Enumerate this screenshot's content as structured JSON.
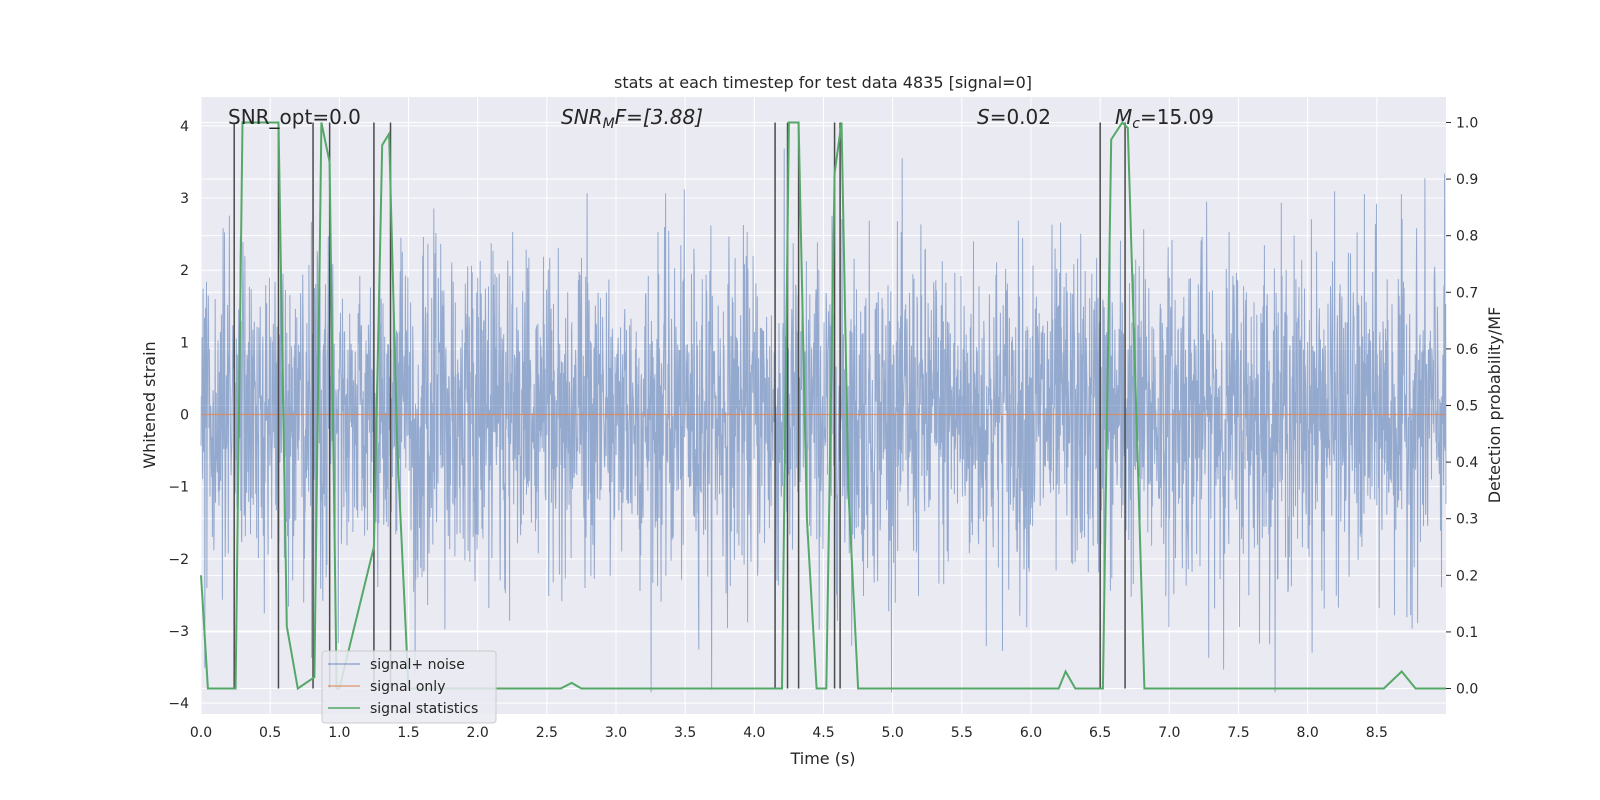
{
  "chart_data": {
    "type": "line",
    "title": "stats at each timestep for test data 4835 [signal=0]",
    "xlabel": "Time (s)",
    "ylabel": "Whitened strain",
    "ylabel_right": "Detection probability/MF",
    "xlim": [
      0.0,
      9.0
    ],
    "ylim": [
      -4.15,
      4.4
    ],
    "ylim_right": [
      -0.045,
      1.045
    ],
    "xticks": [
      "0.0",
      "0.5",
      "1.0",
      "1.5",
      "2.0",
      "2.5",
      "3.0",
      "3.5",
      "4.0",
      "4.5",
      "5.0",
      "5.5",
      "6.0",
      "6.5",
      "7.0",
      "7.5",
      "8.0",
      "8.5"
    ],
    "xtick_values": [
      0.0,
      0.5,
      1.0,
      1.5,
      2.0,
      2.5,
      3.0,
      3.5,
      4.0,
      4.5,
      5.0,
      5.5,
      6.0,
      6.5,
      7.0,
      7.5,
      8.0,
      8.5
    ],
    "yticks": [
      "4",
      "3",
      "2",
      "1",
      "0",
      "−1",
      "−2",
      "−3",
      "−4"
    ],
    "ytick_values": [
      4,
      3,
      2,
      1,
      0,
      -1,
      -2,
      -3,
      -4
    ],
    "yticks_right": [
      "1.0",
      "0.9",
      "0.8",
      "0.7",
      "0.6",
      "0.5",
      "0.4",
      "0.3",
      "0.2",
      "0.1",
      "0.0"
    ],
    "ytick_right_values": [
      1.0,
      0.9,
      0.8,
      0.7,
      0.6,
      0.5,
      0.4,
      0.3,
      0.2,
      0.1,
      0.0
    ],
    "annotations": {
      "snr_opt": "SNR_opt=0.0",
      "snr_mf_base": "SNR",
      "snr_mf_sub": "M",
      "snr_mf_rest": "F=[3.88]",
      "s_var": "S",
      "s_rest": "=0.02",
      "mc_base": "M",
      "mc_sub": "c",
      "mc_rest": "=15.09"
    },
    "legend": {
      "position": "lower-left",
      "entries": [
        "signal+ noise",
        "signal only",
        "signal statistics"
      ]
    },
    "colors": {
      "noise": "#4c72b0",
      "signal_only": "#dd8452",
      "statistics": "#55a868",
      "vlines": "#4a4a4a",
      "background": "#eaeaf2",
      "grid": "#ffffff"
    },
    "series": [
      {
        "name": "signal+ noise",
        "kind": "noise",
        "sample_rate": 2048,
        "std": 0.9,
        "ylim": [
          -4.15,
          4.4
        ]
      },
      {
        "name": "signal only",
        "kind": "constant",
        "value": 0.0
      },
      {
        "name": "signal statistics",
        "axis": "right",
        "x": [
          0.0,
          0.05,
          0.25,
          0.3,
          0.56,
          0.62,
          0.7,
          0.82,
          0.87,
          0.93,
          0.98,
          1.0,
          1.25,
          1.31,
          1.36,
          1.42,
          1.5,
          2.0,
          2.6,
          2.68,
          2.75,
          3.0,
          3.5,
          4.0,
          4.15,
          4.2,
          4.25,
          4.32,
          4.38,
          4.45,
          4.52,
          4.58,
          4.63,
          4.68,
          4.75,
          5.0,
          5.5,
          6.0,
          6.2,
          6.25,
          6.32,
          6.45,
          6.52,
          6.58,
          6.66,
          6.7,
          6.76,
          6.82,
          7.0,
          7.5,
          8.0,
          8.45,
          8.55,
          8.68,
          8.78,
          9.0
        ],
        "values": [
          0.2,
          0.0,
          0.0,
          1.0,
          1.0,
          0.11,
          0.0,
          0.02,
          1.0,
          0.93,
          0.0,
          0.0,
          0.25,
          0.96,
          0.98,
          0.42,
          0.0,
          0.0,
          0.0,
          0.01,
          0.0,
          0.0,
          0.0,
          0.0,
          0.0,
          0.0,
          1.0,
          1.0,
          0.3,
          0.0,
          0.0,
          0.91,
          1.0,
          0.35,
          0.0,
          0.0,
          0.0,
          0.0,
          0.0,
          0.03,
          0.0,
          0.0,
          0.0,
          0.97,
          1.0,
          0.99,
          0.5,
          0.0,
          0.0,
          0.0,
          0.0,
          0.0,
          0.0,
          0.03,
          0.0,
          0.0
        ]
      }
    ],
    "detection_lines": [
      0.24,
      0.56,
      0.81,
      0.93,
      1.25,
      1.37,
      4.15,
      4.24,
      4.32,
      4.58,
      4.62,
      6.5,
      6.68
    ]
  }
}
